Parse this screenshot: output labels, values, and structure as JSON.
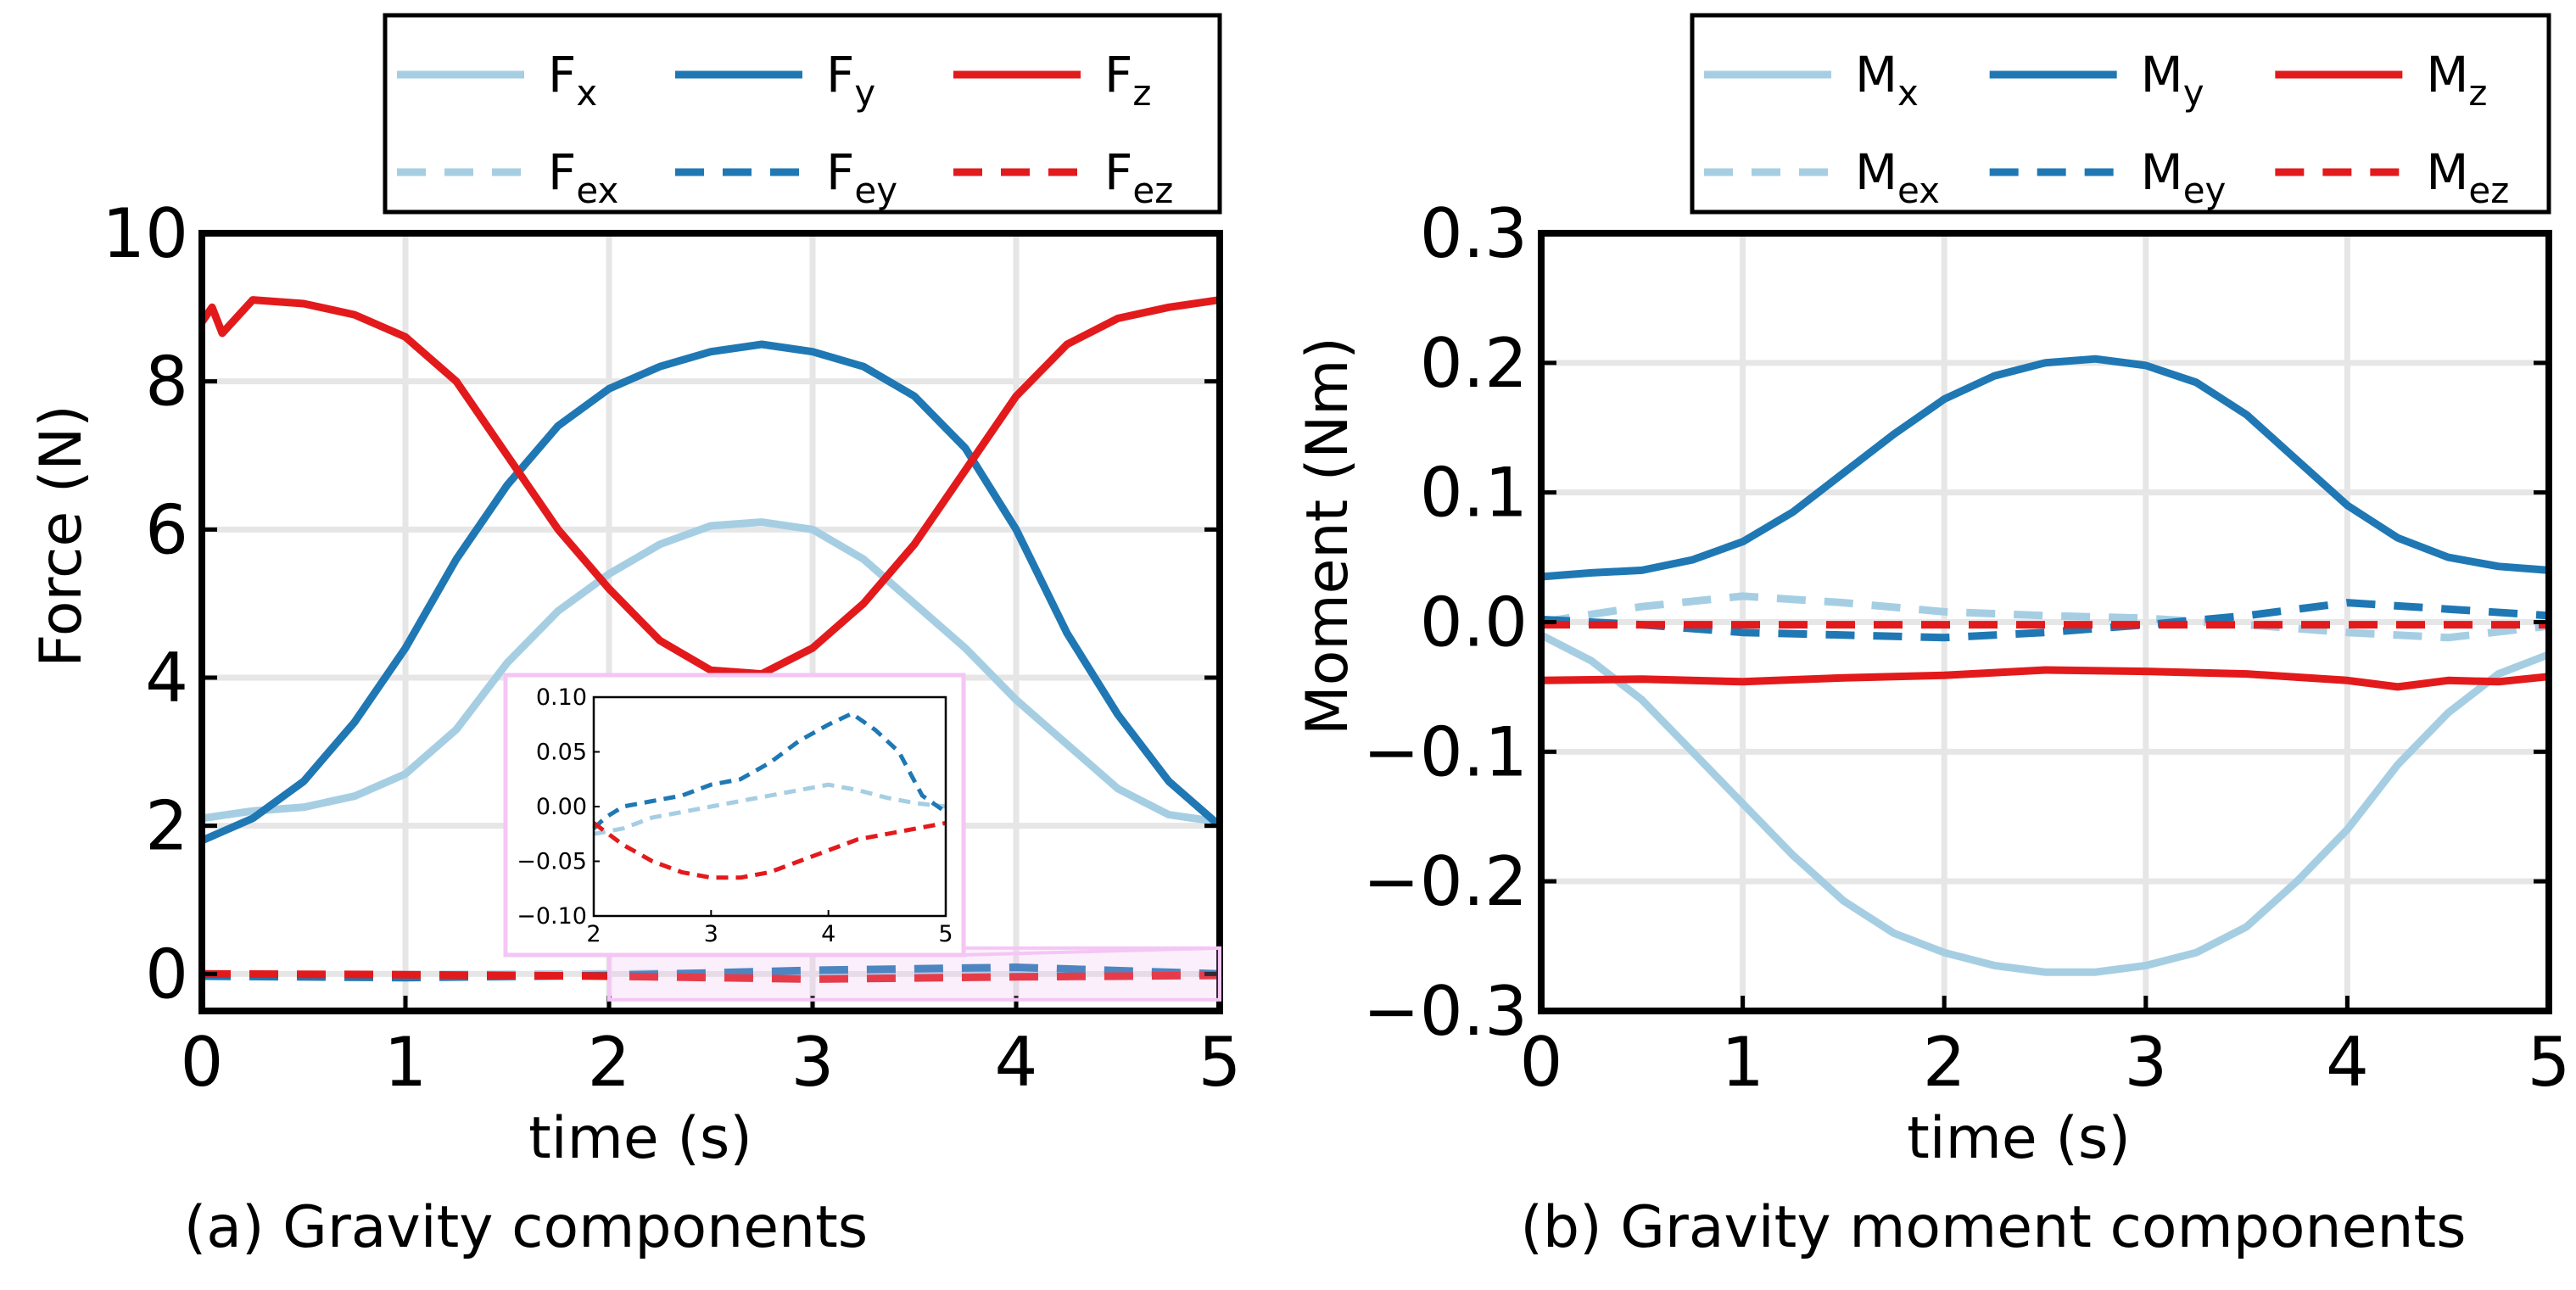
{
  "chart_data": [
    {
      "id": "a",
      "type": "line",
      "caption": "(a) Gravity components",
      "xlabel": "time (s)",
      "ylabel": "Force (N)",
      "xlim": [
        0,
        5
      ],
      "ylim": [
        -0.5,
        10
      ],
      "xticks": [
        0,
        1,
        2,
        3,
        4,
        5
      ],
      "yticks": [
        0,
        2,
        4,
        6,
        8,
        10
      ],
      "grid": true,
      "legend": {
        "placement": "top",
        "entries": [
          {
            "base": "F",
            "sub": "x"
          },
          {
            "base": "F",
            "sub": "y"
          },
          {
            "base": "F",
            "sub": "z"
          },
          {
            "base": "F",
            "sub": "ex"
          },
          {
            "base": "F",
            "sub": "ey"
          },
          {
            "base": "F",
            "sub": "ez"
          }
        ]
      },
      "series": [
        {
          "name": "Fx",
          "color": "#a6cee3",
          "dashed": false,
          "x": [
            0,
            0.25,
            0.5,
            0.75,
            1.0,
            1.25,
            1.5,
            1.75,
            2.0,
            2.25,
            2.5,
            2.75,
            3.0,
            3.25,
            3.5,
            3.75,
            4.0,
            4.25,
            4.5,
            4.75,
            5.0
          ],
          "y": [
            2.1,
            2.2,
            2.25,
            2.4,
            2.7,
            3.3,
            4.2,
            4.9,
            5.4,
            5.8,
            6.05,
            6.1,
            6.0,
            5.6,
            5.0,
            4.4,
            3.7,
            3.1,
            2.5,
            2.15,
            2.05
          ]
        },
        {
          "name": "Fy",
          "color": "#1f78b4",
          "dashed": false,
          "x": [
            0,
            0.25,
            0.5,
            0.75,
            1.0,
            1.25,
            1.5,
            1.75,
            2.0,
            2.25,
            2.5,
            2.75,
            3.0,
            3.25,
            3.5,
            3.75,
            4.0,
            4.25,
            4.5,
            4.75,
            5.0
          ],
          "y": [
            1.8,
            2.1,
            2.6,
            3.4,
            4.4,
            5.6,
            6.6,
            7.4,
            7.9,
            8.2,
            8.4,
            8.5,
            8.4,
            8.2,
            7.8,
            7.1,
            6.0,
            4.6,
            3.5,
            2.6,
            2.0
          ]
        },
        {
          "name": "Fz",
          "color": "#e31a1c",
          "dashed": false,
          "x": [
            0,
            0.05,
            0.1,
            0.25,
            0.5,
            0.75,
            1.0,
            1.25,
            1.5,
            1.75,
            2.0,
            2.25,
            2.5,
            2.75,
            3.0,
            3.25,
            3.5,
            3.75,
            4.0,
            4.25,
            4.5,
            4.75,
            5.0
          ],
          "y": [
            8.8,
            9.0,
            8.65,
            9.1,
            9.05,
            8.9,
            8.6,
            8.0,
            7.0,
            6.0,
            5.2,
            4.5,
            4.1,
            4.05,
            4.4,
            5.0,
            5.8,
            6.8,
            7.8,
            8.5,
            8.85,
            9.0,
            9.1
          ]
        },
        {
          "name": "Fex",
          "color": "#a6cee3",
          "dashed": true,
          "x": [
            0,
            1,
            2,
            3,
            4,
            5
          ],
          "y": [
            -0.02,
            -0.01,
            0.0,
            0.02,
            0.01,
            0.0
          ]
        },
        {
          "name": "Fey",
          "color": "#1f78b4",
          "dashed": true,
          "x": [
            0,
            1,
            2,
            3,
            4,
            5
          ],
          "y": [
            -0.03,
            -0.05,
            -0.02,
            0.05,
            0.09,
            0.0
          ]
        },
        {
          "name": "Fez",
          "color": "#e31a1c",
          "dashed": true,
          "x": [
            0,
            1,
            2,
            3,
            4,
            5
          ],
          "y": [
            0.0,
            -0.01,
            -0.03,
            -0.07,
            -0.04,
            -0.02
          ]
        }
      ],
      "inset": {
        "xlim": [
          2,
          5
        ],
        "ylim": [
          -0.1,
          0.1
        ],
        "xticks": [
          2,
          3,
          4,
          5
        ],
        "yticks": [
          -0.1,
          -0.05,
          0.0,
          0.05,
          0.1
        ],
        "ytick_labels": [
          "−0.10",
          "−0.05",
          "0.00",
          "0.05",
          "0.10"
        ],
        "xtick_labels": [
          "2",
          "3",
          "4",
          "5"
        ],
        "series": [
          {
            "name": "Fex",
            "color": "#a6cee3",
            "x": [
              2.0,
              2.25,
              2.5,
              2.75,
              3.0,
              3.25,
              3.5,
              3.75,
              4.0,
              4.25,
              4.5,
              4.75,
              5.0
            ],
            "y": [
              -0.025,
              -0.02,
              -0.01,
              -0.005,
              0.0,
              0.005,
              0.01,
              0.015,
              0.02,
              0.015,
              0.008,
              0.003,
              0.0
            ]
          },
          {
            "name": "Fey",
            "color": "#1f78b4",
            "x": [
              2.0,
              2.1,
              2.25,
              2.5,
              2.75,
              3.0,
              3.25,
              3.5,
              3.75,
              4.0,
              4.2,
              4.4,
              4.6,
              4.8,
              5.0
            ],
            "y": [
              -0.02,
              -0.01,
              0.0,
              0.005,
              0.01,
              0.02,
              0.025,
              0.04,
              0.06,
              0.075,
              0.085,
              0.07,
              0.05,
              0.01,
              -0.005
            ]
          },
          {
            "name": "Fez",
            "color": "#e31a1c",
            "x": [
              2.0,
              2.25,
              2.5,
              2.75,
              3.0,
              3.25,
              3.5,
              3.75,
              4.0,
              4.25,
              4.5,
              4.75,
              5.0
            ],
            "y": [
              -0.015,
              -0.035,
              -0.05,
              -0.06,
              -0.065,
              -0.065,
              -0.06,
              -0.05,
              -0.04,
              -0.03,
              -0.025,
              -0.02,
              -0.015
            ]
          }
        ]
      }
    },
    {
      "id": "b",
      "type": "line",
      "caption": "(b) Gravity moment components",
      "xlabel": "time (s)",
      "ylabel": "Moment (Nm)",
      "xlim": [
        0,
        5
      ],
      "ylim": [
        -0.3,
        0.3
      ],
      "xticks": [
        0,
        1,
        2,
        3,
        4,
        5
      ],
      "yticks": [
        -0.3,
        -0.2,
        -0.1,
        0.0,
        0.1,
        0.2,
        0.3
      ],
      "ytick_labels": [
        "−0.3",
        "−0.2",
        "−0.1",
        "0.0",
        "0.1",
        "0.2",
        "0.3"
      ],
      "grid": true,
      "legend": {
        "placement": "top",
        "entries": [
          {
            "base": "M",
            "sub": "x"
          },
          {
            "base": "M",
            "sub": "y"
          },
          {
            "base": "M",
            "sub": "z"
          },
          {
            "base": "M",
            "sub": "ex"
          },
          {
            "base": "M",
            "sub": "ey"
          },
          {
            "base": "M",
            "sub": "ez"
          }
        ]
      },
      "series": [
        {
          "name": "Mx",
          "color": "#a6cee3",
          "dashed": false,
          "x": [
            0,
            0.25,
            0.5,
            0.75,
            1.0,
            1.25,
            1.5,
            1.75,
            2.0,
            2.25,
            2.5,
            2.75,
            3.0,
            3.25,
            3.5,
            3.75,
            4.0,
            4.25,
            4.5,
            4.75,
            5.0
          ],
          "y": [
            -0.01,
            -0.03,
            -0.06,
            -0.1,
            -0.14,
            -0.18,
            -0.215,
            -0.24,
            -0.255,
            -0.265,
            -0.27,
            -0.27,
            -0.265,
            -0.255,
            -0.235,
            -0.2,
            -0.16,
            -0.11,
            -0.07,
            -0.04,
            -0.025
          ]
        },
        {
          "name": "My",
          "color": "#1f78b4",
          "dashed": false,
          "x": [
            0,
            0.25,
            0.5,
            0.75,
            1.0,
            1.25,
            1.5,
            1.75,
            2.0,
            2.25,
            2.5,
            2.75,
            3.0,
            3.25,
            3.5,
            3.75,
            4.0,
            4.25,
            4.5,
            4.75,
            5.0
          ],
          "y": [
            0.035,
            0.038,
            0.04,
            0.048,
            0.062,
            0.085,
            0.115,
            0.145,
            0.172,
            0.19,
            0.2,
            0.203,
            0.198,
            0.185,
            0.16,
            0.125,
            0.09,
            0.065,
            0.05,
            0.043,
            0.04
          ]
        },
        {
          "name": "Mz",
          "color": "#e31a1c",
          "dashed": false,
          "x": [
            0,
            0.5,
            1.0,
            1.5,
            2.0,
            2.5,
            3.0,
            3.5,
            4.0,
            4.25,
            4.5,
            4.75,
            5.0
          ],
          "y": [
            -0.045,
            -0.044,
            -0.046,
            -0.043,
            -0.041,
            -0.037,
            -0.038,
            -0.04,
            -0.045,
            -0.05,
            -0.045,
            -0.046,
            -0.042
          ]
        },
        {
          "name": "Mex",
          "color": "#a6cee3",
          "dashed": true,
          "x": [
            0,
            0.5,
            1.0,
            1.5,
            2.0,
            2.5,
            3.0,
            3.5,
            4.0,
            4.5,
            5.0
          ],
          "y": [
            0.0,
            0.012,
            0.02,
            0.015,
            0.008,
            0.005,
            0.003,
            -0.002,
            -0.008,
            -0.012,
            -0.003
          ]
        },
        {
          "name": "Mey",
          "color": "#1f78b4",
          "dashed": true,
          "x": [
            0,
            0.5,
            1.0,
            1.5,
            2.0,
            2.5,
            3.0,
            3.5,
            4.0,
            4.5,
            5.0
          ],
          "y": [
            0.002,
            -0.002,
            -0.008,
            -0.01,
            -0.012,
            -0.008,
            -0.002,
            0.005,
            0.015,
            0.01,
            0.005
          ]
        },
        {
          "name": "Mez",
          "color": "#e31a1c",
          "dashed": true,
          "x": [
            0,
            5
          ],
          "y": [
            -0.002,
            -0.002
          ]
        }
      ]
    }
  ]
}
